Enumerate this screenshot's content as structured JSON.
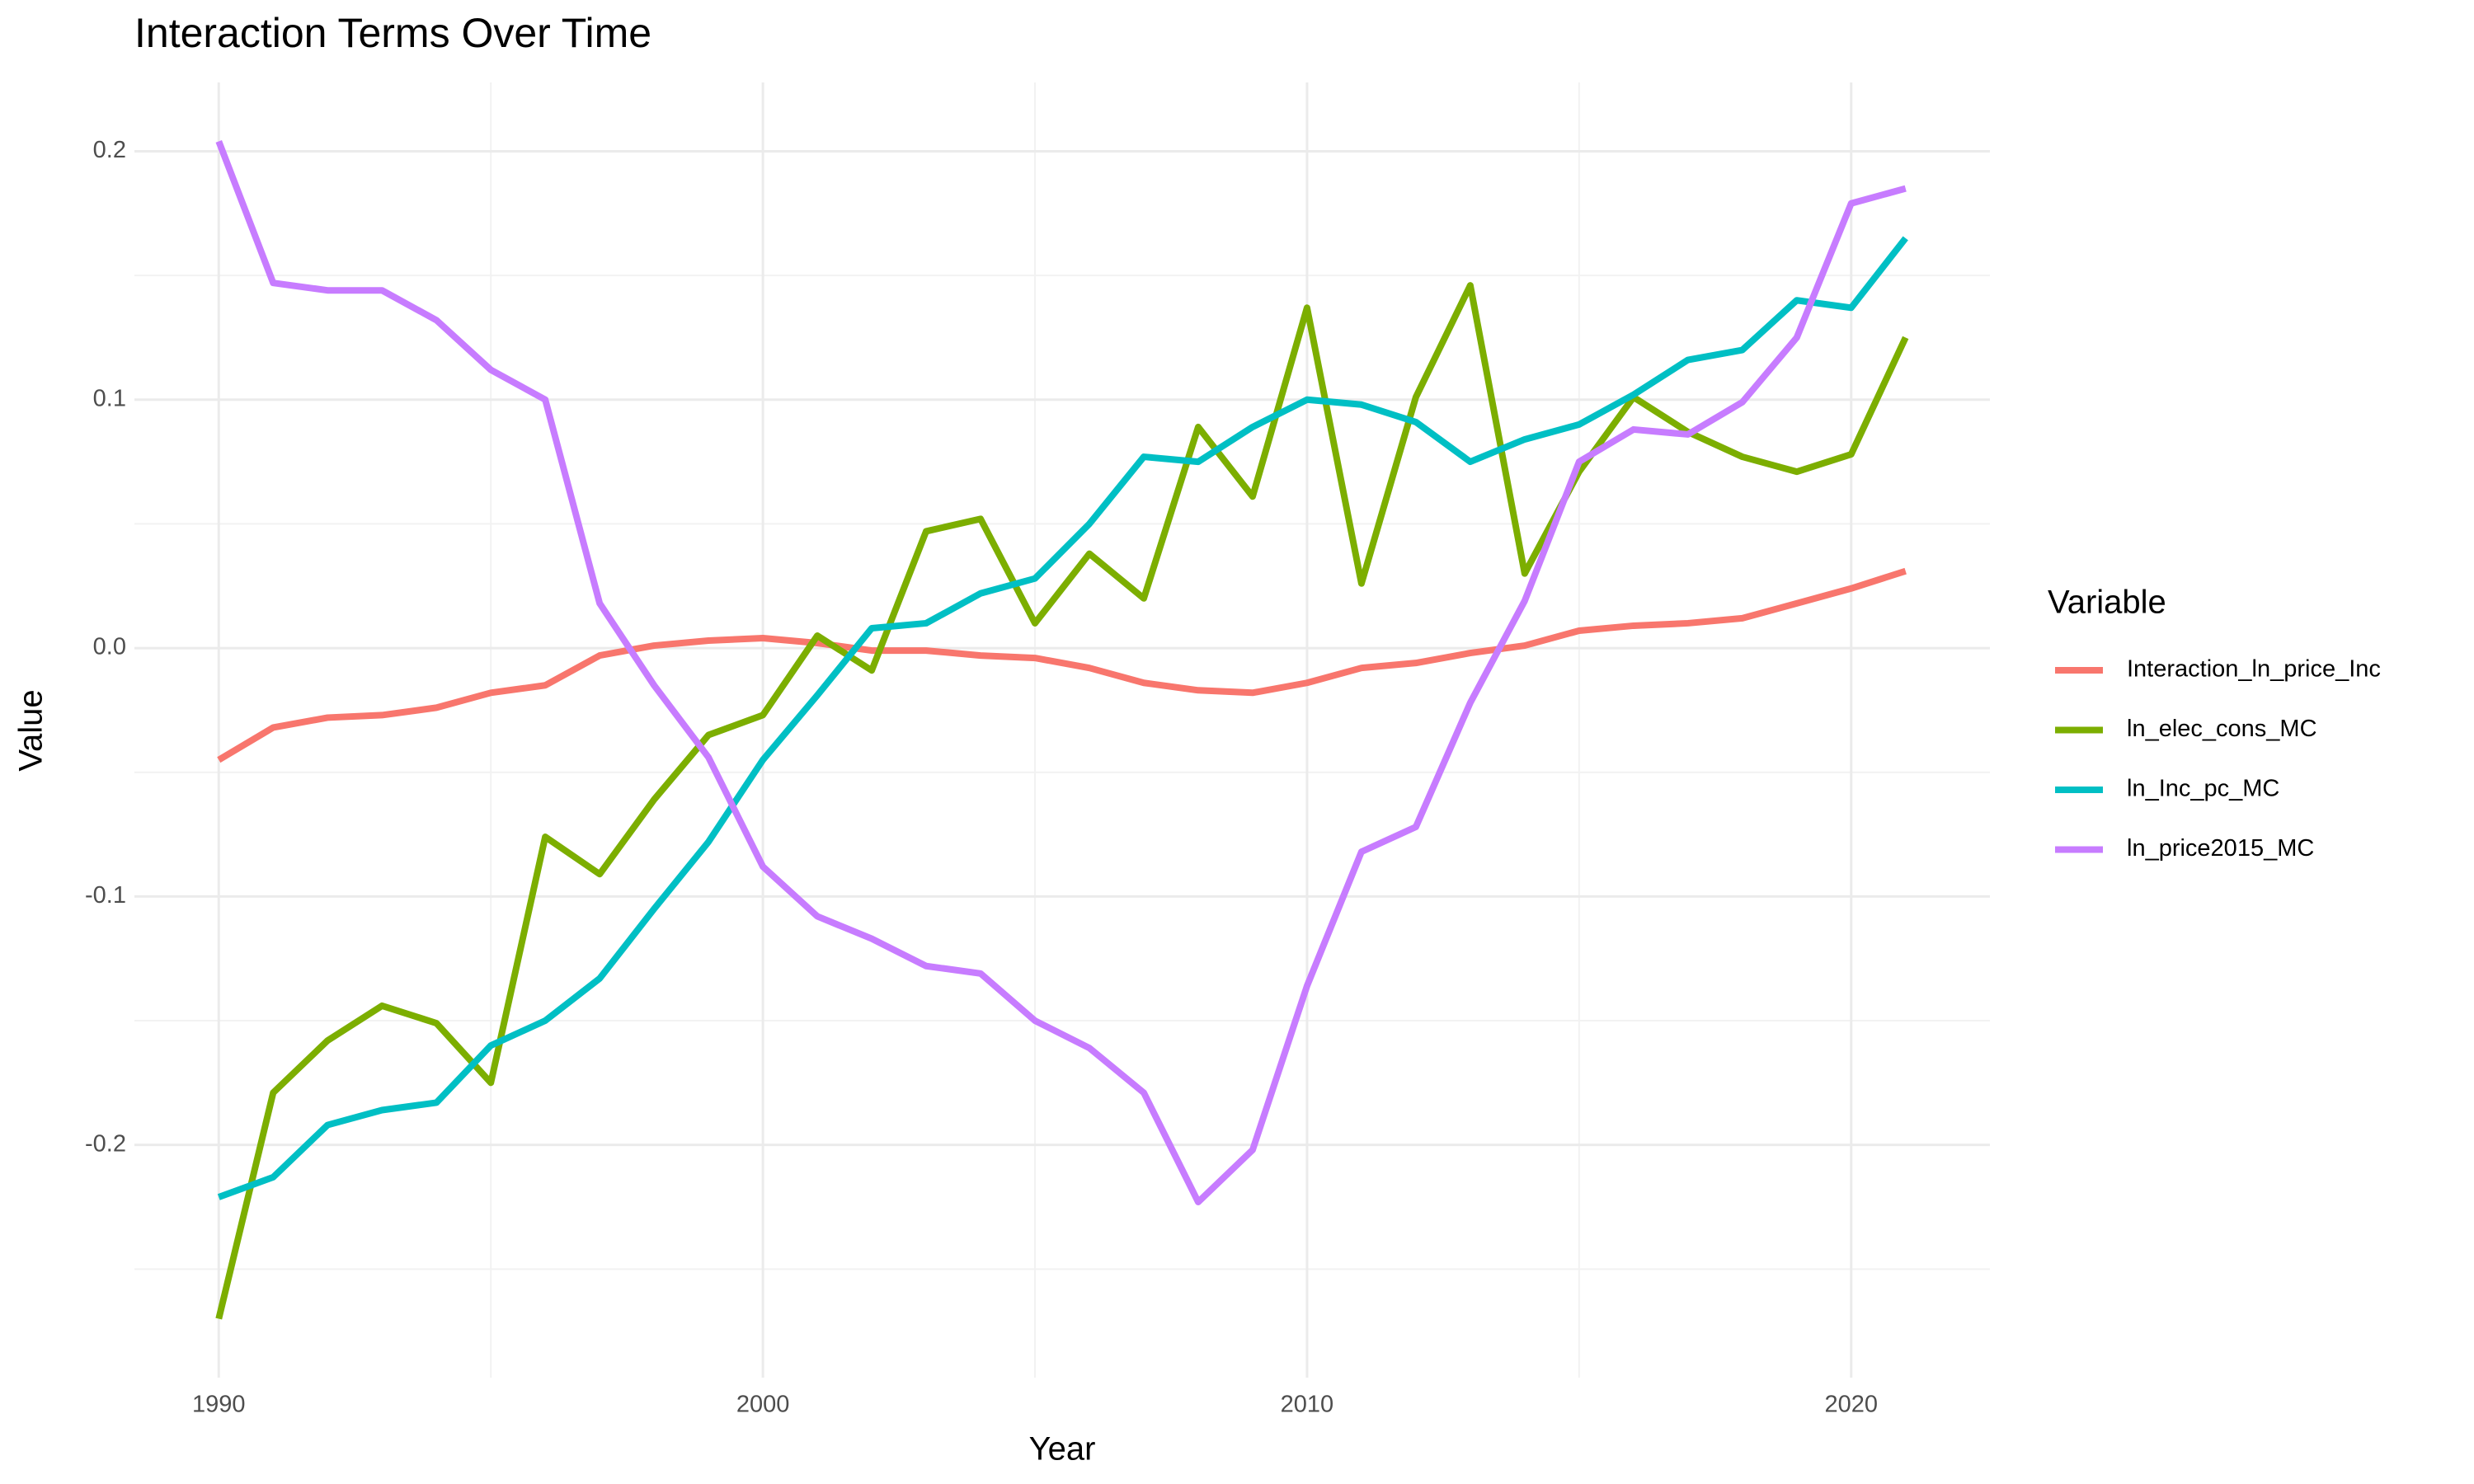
{
  "chart_data": {
    "type": "line",
    "title": "Interaction Terms Over Time",
    "x_label": "Year",
    "y_label": "Value",
    "legend_title": "Variable",
    "legend_position": "right",
    "grid": true,
    "x": [
      1990,
      1991,
      1992,
      1993,
      1994,
      1995,
      1996,
      1997,
      1998,
      1999,
      2000,
      2001,
      2002,
      2003,
      2004,
      2005,
      2006,
      2007,
      2008,
      2009,
      2010,
      2011,
      2012,
      2013,
      2014,
      2015,
      2016,
      2017,
      2018,
      2019,
      2020,
      2021
    ],
    "series": [
      {
        "name": "Interaction_ln_price_Inc",
        "color": "#F8766D",
        "values": [
          -0.045,
          -0.032,
          -0.028,
          -0.027,
          -0.024,
          -0.018,
          -0.015,
          -0.003,
          0.001,
          0.003,
          0.004,
          0.002,
          -0.001,
          -0.001,
          -0.003,
          -0.004,
          -0.008,
          -0.014,
          -0.017,
          -0.018,
          -0.014,
          -0.008,
          -0.006,
          -0.002,
          0.001,
          0.007,
          0.009,
          0.01,
          0.012,
          0.018,
          0.024,
          0.031
        ]
      },
      {
        "name": "ln_elec_cons_MC",
        "color": "#7CAE00",
        "values": [
          -0.27,
          -0.179,
          -0.158,
          -0.144,
          -0.151,
          -0.175,
          -0.076,
          -0.091,
          -0.061,
          -0.035,
          -0.027,
          0.005,
          -0.009,
          0.047,
          0.052,
          0.01,
          0.038,
          0.02,
          0.089,
          0.061,
          0.137,
          0.026,
          0.101,
          0.146,
          0.03,
          0.071,
          0.101,
          0.087,
          0.077,
          0.071,
          0.078,
          0.125
        ]
      },
      {
        "name": "ln_Inc_pc_MC",
        "color": "#00BFC4",
        "values": [
          -0.221,
          -0.213,
          -0.192,
          -0.186,
          -0.183,
          -0.16,
          -0.15,
          -0.133,
          -0.105,
          -0.078,
          -0.045,
          -0.019,
          0.008,
          0.01,
          0.022,
          0.028,
          0.05,
          0.077,
          0.075,
          0.089,
          0.1,
          0.098,
          0.091,
          0.075,
          0.084,
          0.09,
          0.102,
          0.116,
          0.12,
          0.14,
          0.137,
          0.165
        ]
      },
      {
        "name": "ln_price2015_MC",
        "color": "#C77CFF",
        "values": [
          0.204,
          0.147,
          0.144,
          0.144,
          0.132,
          0.112,
          0.1,
          0.018,
          -0.015,
          -0.044,
          -0.088,
          -0.108,
          -0.117,
          -0.128,
          -0.131,
          -0.15,
          -0.161,
          -0.179,
          -0.223,
          -0.202,
          -0.136,
          -0.082,
          -0.072,
          -0.022,
          0.019,
          0.075,
          0.088,
          0.086,
          0.099,
          0.125,
          0.179,
          0.185
        ]
      }
    ],
    "xlim": [
      1988.45,
      2022.55
    ],
    "xticks": [
      1990,
      2000,
      2010,
      2020
    ],
    "minor_xticks": [
      1995,
      2005,
      2015
    ],
    "ylim": [
      -0.2937,
      0.2277
    ],
    "yticks": [
      -0.2,
      -0.1,
      {
        "value": 0,
        "label": "0.0"
      },
      0.1,
      0.2
    ],
    "minor_yticks": [
      -0.25,
      -0.15,
      -0.05,
      0.05,
      0.15
    ]
  }
}
